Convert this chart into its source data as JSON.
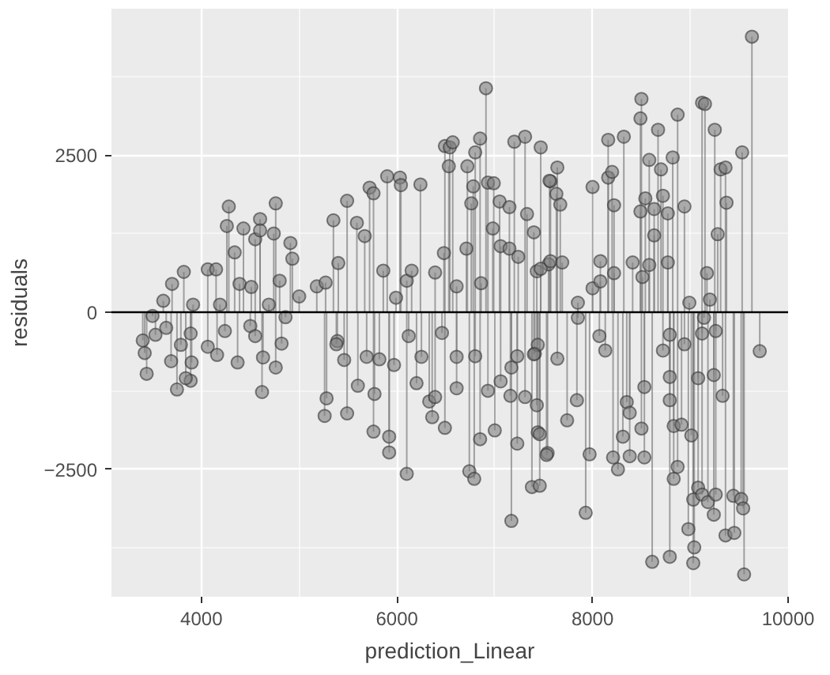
{
  "chart_data": {
    "type": "lollipop",
    "xlabel": "prediction_Linear",
    "ylabel": "residuals",
    "xlim": [
      3080,
      10000
    ],
    "ylim": [
      -4525,
      4825
    ],
    "xticks": [
      4000,
      6000,
      8000,
      10000
    ],
    "yticks": [
      -2500,
      0,
      2500
    ],
    "grid": true,
    "marker": "circle",
    "ref_lines": [
      {
        "axis": "y",
        "value": 0,
        "color": "#000000"
      }
    ],
    "series": [
      {
        "color": "#7f7f7f",
        "x": [
          3820,
          3700,
          3915,
          3610,
          3750,
          3440,
          3890,
          3840,
          3900,
          3400,
          3530,
          3690,
          3790,
          3500,
          3640,
          3420,
          3890,
          4280,
          4760,
          4600,
          4260,
          4430,
          4910,
          4930,
          4065,
          4150,
          4550,
          4600,
          4740,
          4800,
          5000,
          4065,
          4160,
          4370,
          4620,
          4760,
          4630,
          4820,
          4240,
          4500,
          4390,
          4340,
          4510,
          4690,
          4190,
          4860,
          4550,
          5180,
          5270,
          5350,
          5280,
          5260,
          5390,
          5490,
          5400,
          5490,
          5720,
          5760,
          5900,
          6030,
          6040,
          6240,
          6100,
          5920,
          5920,
          5760,
          5770,
          5590,
          5670,
          5600,
          5380,
          5460,
          5690,
          5820,
          5970,
          6120,
          6250,
          6200,
          6360,
          6490,
          6330,
          6390,
          6460,
          6610,
          6610,
          6490,
          6540,
          6570,
          6530,
          6720,
          6800,
          6850,
          6910,
          6760,
          6780,
          6930,
          6990,
          6980,
          7050,
          7150,
          7200,
          7310,
          7470,
          7570,
          7330,
          7400,
          6740,
          6790,
          6850,
          7170,
          7230,
          7380,
          7460,
          7540,
          7440,
          7430,
          7310,
          7160,
          7000,
          6930,
          6610,
          6710,
          6860,
          7060,
          7150,
          7240,
          7430,
          7550,
          6480,
          6390,
          7060,
          7170,
          7230,
          6800,
          7410,
          7440,
          6100,
          6150,
          5990,
          5860,
          9630,
          8500,
          9120,
          9150,
          8870,
          8490,
          8160,
          8320,
          8670,
          9250,
          9530,
          8580,
          8820,
          8700,
          9310,
          9360,
          7640,
          7560,
          7630,
          7670,
          8000,
          8160,
          8200,
          8220,
          8490,
          8540,
          8630,
          8720,
          8770,
          8940,
          9370,
          9280,
          8630,
          7470,
          7570,
          7690,
          7850,
          8000,
          8080,
          8080,
          8220,
          8410,
          8510,
          8580,
          8770,
          8990,
          9170,
          9200,
          7850,
          8070,
          8130,
          7640,
          7400,
          7740,
          7840,
          7970,
          7930,
          8210,
          8260,
          8310,
          8380,
          8350,
          8380,
          8500,
          8530,
          8530,
          8610,
          8790,
          9030,
          9040,
          9550,
          8790,
          8790,
          8790,
          8830,
          8870,
          8830,
          8910,
          8940,
          9010,
          8980,
          9030,
          9080,
          9120,
          9180,
          9240,
          9260,
          9240,
          9330,
          9120,
          9140,
          9080,
          9260,
          9360,
          9450,
          9440,
          9520,
          9540,
          9710,
          8720,
          7460,
          7530
        ],
        "values": [
          640,
          450,
          120,
          180,
          -1230,
          -980,
          -1090,
          -1050,
          -800,
          -450,
          -360,
          -780,
          -520,
          -60,
          -250,
          -650,
          -340,
          1680,
          1730,
          1480,
          1370,
          1330,
          1100,
          850,
          680,
          680,
          1160,
          1300,
          1250,
          500,
          250,
          -550,
          -680,
          -800,
          -1270,
          -880,
          -720,
          -500,
          -300,
          -220,
          450,
          950,
          400,
          120,
          120,
          -80,
          -380,
          410,
          470,
          1460,
          -1370,
          -1650,
          -460,
          1770,
          780,
          -1610,
          1980,
          1890,
          2160,
          2140,
          2020,
          2030,
          -2570,
          -2230,
          -1980,
          -1900,
          -1300,
          1420,
          1210,
          -1170,
          -510,
          -760,
          -710,
          -750,
          -840,
          -380,
          -710,
          -1130,
          -1670,
          -1840,
          -1420,
          -1350,
          -330,
          -1210,
          -710,
          2640,
          2620,
          2700,
          2320,
          2320,
          2540,
          2760,
          3560,
          1730,
          2000,
          2060,
          2050,
          1330,
          1760,
          1670,
          2710,
          2790,
          2620,
          2080,
          1560,
          1270,
          -2530,
          -2650,
          -2020,
          -3320,
          -2090,
          -2780,
          -2760,
          -2240,
          -1910,
          -1480,
          -1350,
          -1330,
          -1880,
          -1250,
          410,
          1010,
          460,
          1050,
          1010,
          880,
          650,
          760,
          940,
          630,
          -1100,
          -880,
          -700,
          -700,
          -660,
          -520,
          500,
          660,
          230,
          660,
          4380,
          3390,
          3330,
          3310,
          3140,
          3080,
          2740,
          2790,
          2900,
          2900,
          2540,
          2420,
          2460,
          2270,
          2270,
          2300,
          2300,
          2090,
          1880,
          1710,
          1990,
          2140,
          2230,
          1700,
          1600,
          1810,
          1640,
          1850,
          1570,
          1680,
          1740,
          1240,
          1220,
          690,
          810,
          790,
          150,
          380,
          810,
          490,
          620,
          790,
          560,
          750,
          790,
          150,
          620,
          200,
          -90,
          -380,
          -610,
          -740,
          -670,
          -1720,
          -1400,
          -2260,
          -3190,
          -2310,
          -2500,
          -1980,
          -2290,
          -1430,
          -1600,
          -1850,
          -2310,
          -1190,
          -3970,
          -3890,
          -3990,
          -3740,
          -4170,
          -360,
          -1030,
          -1400,
          -2650,
          -2460,
          -1810,
          -1790,
          -510,
          -1960,
          -3450,
          -2980,
          -2790,
          -2900,
          -3020,
          -3220,
          -2900,
          -1000,
          -1330,
          -340,
          -90,
          -1050,
          -300,
          -3550,
          -3510,
          -2920,
          -2970,
          -3120,
          -620,
          -610,
          -1940,
          -2270
        ]
      }
    ]
  }
}
